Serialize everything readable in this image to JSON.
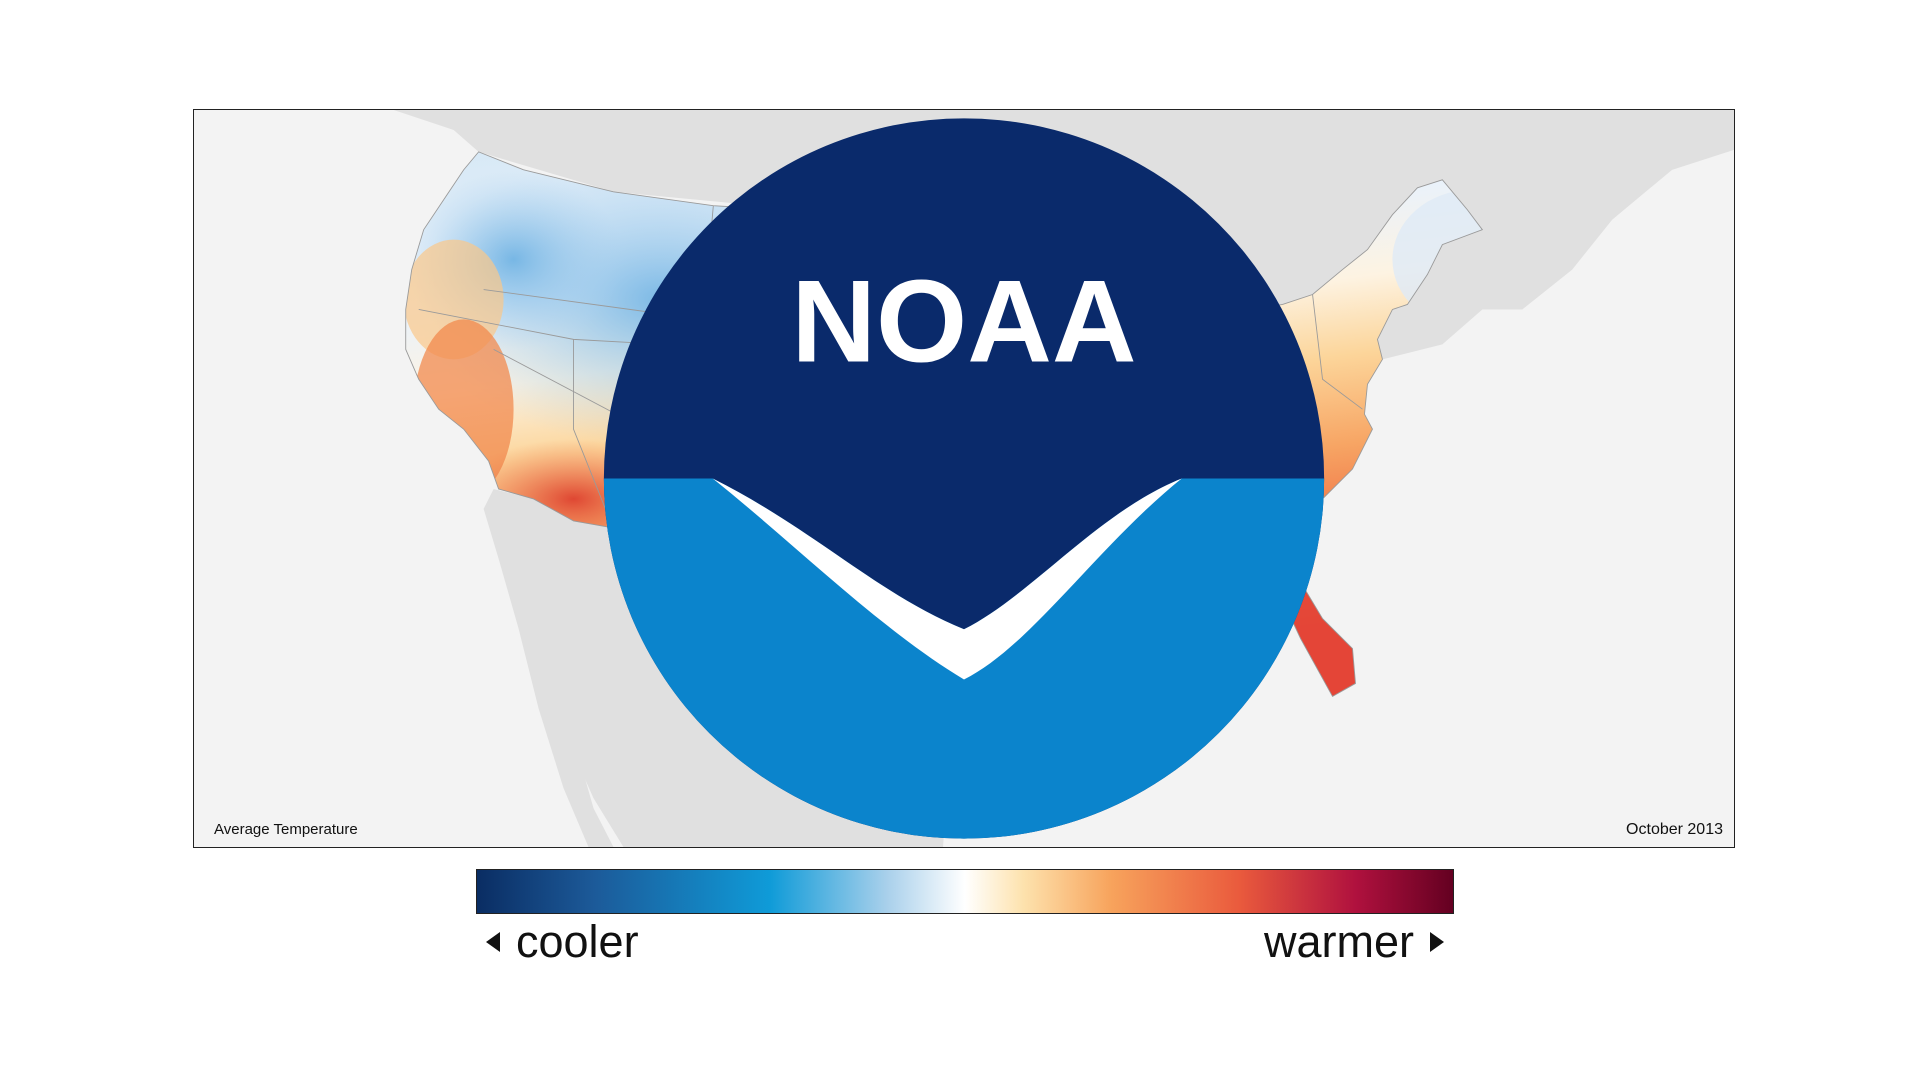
{
  "map": {
    "caption_left": "Average Temperature",
    "caption_right": "October 2013",
    "logo_text": "NOAA",
    "colors": {
      "background": "#f3f3f3",
      "land_outside": "#e0e0e0",
      "state_lines": "#9a9a9a",
      "cool_blue": "#8ec3ea",
      "warm_orange": "#f58e55",
      "hot_red": "#de3a2f"
    }
  },
  "legend": {
    "cooler_label": "cooler",
    "warmer_label": "warmer",
    "cooler_arrow_icon": "triangle-left-icon",
    "warmer_arrow_icon": "triangle-right-icon",
    "gradient_colors": [
      "#0a2d63",
      "#1c5a99",
      "#0f9bd8",
      "#a9d0eb",
      "#ffffff",
      "#fde2ad",
      "#f7a35c",
      "#ea5b3d",
      "#b0113e",
      "#640021"
    ]
  }
}
